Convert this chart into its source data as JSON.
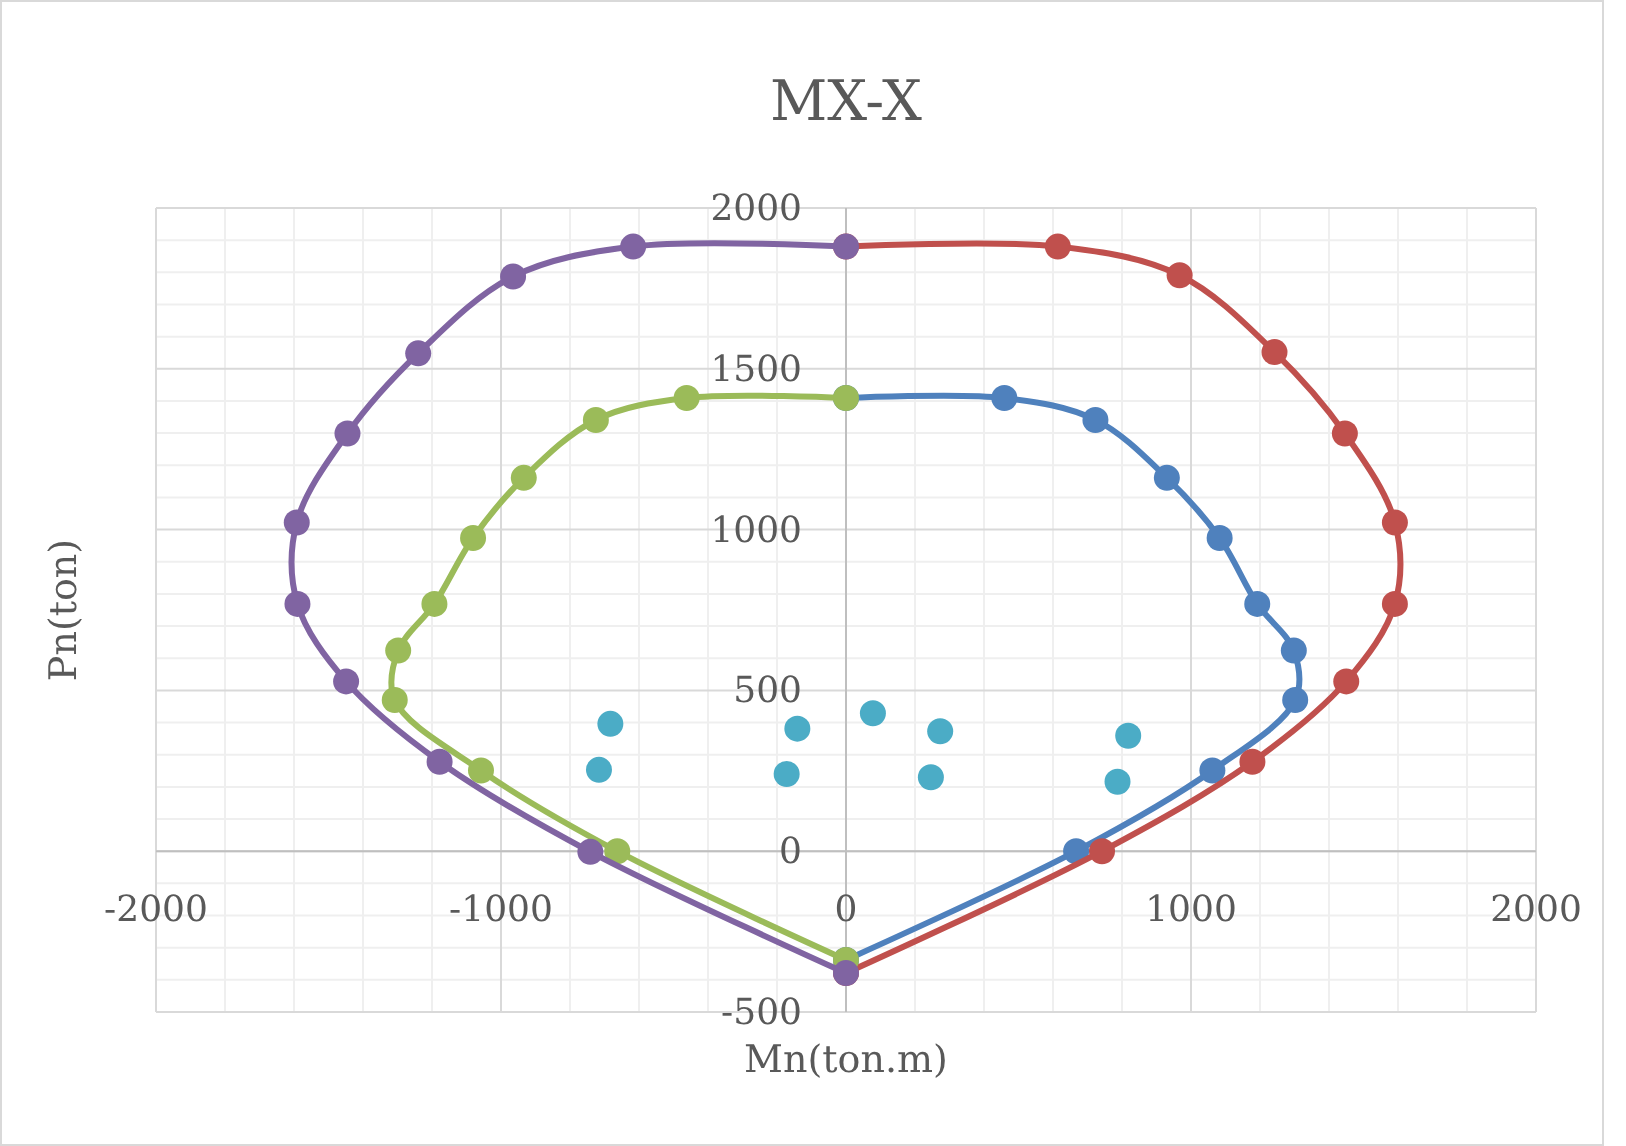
{
  "chart_data": {
    "type": "line",
    "title": "MX-X",
    "xlabel": "Mn(ton.m)",
    "ylabel": "Pn(ton)",
    "xlim": [
      -2000,
      2000
    ],
    "ylim": [
      -500,
      2000
    ],
    "xticks": [
      -2000,
      -1000,
      0,
      1000,
      2000
    ],
    "yticks": [
      -500,
      0,
      500,
      1000,
      1500,
      2000
    ],
    "grid": true,
    "marker": "circle",
    "line_style": "solid",
    "series": [
      {
        "color": "#4f81bd",
        "x": [
          0,
          459,
          723,
          930,
          1083,
          1192,
          1298,
          1302,
          1062,
          667,
          0
        ],
        "values": [
          1409,
          1409,
          1341,
          1161,
          974,
          769,
          624,
          470,
          251,
          0,
          -338
        ]
      },
      {
        "color": "#c0504d",
        "x": [
          0,
          614,
          967,
          1242,
          1446,
          1591,
          1591,
          1450,
          1178,
          742,
          0
        ],
        "values": [
          1880,
          1880,
          1791,
          1552,
          1299,
          1022,
          769,
          528,
          278,
          0,
          -379
        ]
      },
      {
        "color": "#9bbb59",
        "x": [
          0,
          -462,
          -725,
          -934,
          -1081,
          -1193,
          -1298,
          -1308,
          -1058,
          -663,
          0
        ],
        "values": [
          1409,
          1409,
          1341,
          1161,
          974,
          769,
          624,
          470,
          251,
          0,
          -338
        ]
      },
      {
        "color": "#8064a2",
        "x": [
          0,
          -617,
          -965,
          -1240,
          -1445,
          -1592,
          -1590,
          -1449,
          -1178,
          -741,
          0
        ],
        "values": [
          1880,
          1880,
          1787,
          1548,
          1299,
          1022,
          769,
          528,
          278,
          -2,
          -379
        ]
      },
      {
        "type": "scatter",
        "color": "#4bacc6",
        "x": [
          -683,
          -716,
          -141,
          -172,
          78,
          273,
          246,
          818,
          787
        ],
        "values": [
          396,
          253,
          381,
          240,
          429,
          373,
          230,
          359,
          216
        ]
      }
    ]
  }
}
